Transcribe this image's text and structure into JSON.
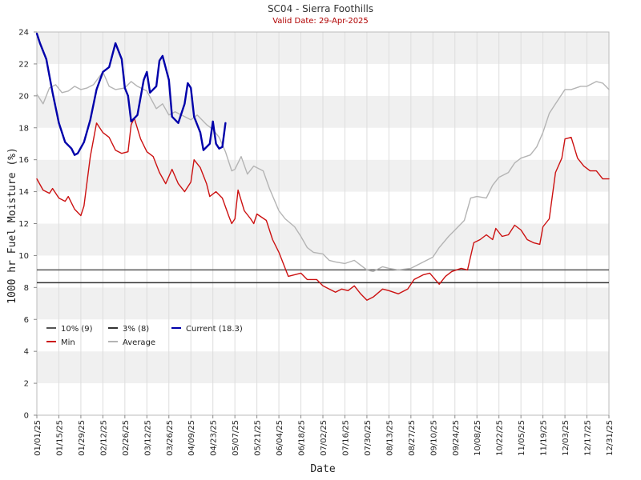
{
  "chart_data": {
    "type": "line",
    "title": "SC04 - Sierra Foothills",
    "subtitle": "Valid Date: 29-Apr-2025",
    "xlabel": "Date",
    "ylabel": "1000 hr Fuel Moisture (%)",
    "ylim": [
      0,
      24
    ],
    "xlim": [
      "01/01/25",
      "12/31/25"
    ],
    "yticks": [
      0,
      2,
      4,
      6,
      8,
      10,
      12,
      14,
      16,
      18,
      20,
      22,
      24
    ],
    "xticks": [
      "01/01/25",
      "01/15/25",
      "01/29/25",
      "02/12/25",
      "02/26/25",
      "03/12/25",
      "03/26/25",
      "04/09/25",
      "04/23/25",
      "05/07/25",
      "05/21/25",
      "06/04/25",
      "06/18/25",
      "07/02/25",
      "07/16/25",
      "07/30/25",
      "08/13/25",
      "08/27/25",
      "09/10/25",
      "09/24/25",
      "10/08/25",
      "10/22/25",
      "11/05/25",
      "11/19/25",
      "12/03/25",
      "12/17/25",
      "12/31/25"
    ],
    "grid": "horizontal bands",
    "legend_position": "lower-left",
    "thresholds": [
      {
        "name": "10% (9)",
        "value": 9.1,
        "color": "#555555"
      },
      {
        "name": "3% (8)",
        "value": 8.3,
        "color": "#333333"
      }
    ],
    "series": [
      {
        "name": "Average",
        "color": "#b4b4b4",
        "points": [
          [
            "01/01/25",
            20.1
          ],
          [
            "01/05/25",
            19.5
          ],
          [
            "01/09/25",
            20.5
          ],
          [
            "01/13/25",
            20.7
          ],
          [
            "01/17/25",
            20.2
          ],
          [
            "01/21/25",
            20.3
          ],
          [
            "01/25/25",
            20.6
          ],
          [
            "01/29/25",
            20.4
          ],
          [
            "02/02/25",
            20.5
          ],
          [
            "02/06/25",
            20.7
          ],
          [
            "02/12/25",
            21.5
          ],
          [
            "02/16/25",
            20.6
          ],
          [
            "02/20/25",
            20.4
          ],
          [
            "02/26/25",
            20.5
          ],
          [
            "03/02/25",
            20.9
          ],
          [
            "03/06/25",
            20.6
          ],
          [
            "03/12/25",
            20.3
          ],
          [
            "03/18/25",
            19.2
          ],
          [
            "03/22/25",
            19.5
          ],
          [
            "03/26/25",
            18.8
          ],
          [
            "03/30/25",
            19.0
          ],
          [
            "04/05/25",
            18.7
          ],
          [
            "04/09/25",
            18.5
          ],
          [
            "04/13/25",
            18.8
          ],
          [
            "04/19/25",
            18.2
          ],
          [
            "04/23/25",
            17.9
          ],
          [
            "04/27/25",
            17.4
          ],
          [
            "05/01/25",
            16.5
          ],
          [
            "05/05/25",
            15.3
          ],
          [
            "05/07/25",
            15.4
          ],
          [
            "05/11/25",
            16.2
          ],
          [
            "05/15/25",
            15.1
          ],
          [
            "05/19/25",
            15.6
          ],
          [
            "05/25/25",
            15.3
          ],
          [
            "05/29/25",
            14.2
          ],
          [
            "06/04/25",
            12.8
          ],
          [
            "06/08/25",
            12.3
          ],
          [
            "06/14/25",
            11.8
          ],
          [
            "06/18/25",
            11.2
          ],
          [
            "06/22/25",
            10.5
          ],
          [
            "06/26/25",
            10.2
          ],
          [
            "07/02/25",
            10.1
          ],
          [
            "07/06/25",
            9.7
          ],
          [
            "07/10/25",
            9.6
          ],
          [
            "07/16/25",
            9.5
          ],
          [
            "07/22/25",
            9.7
          ],
          [
            "07/30/25",
            9.1
          ],
          [
            "08/03/25",
            9.0
          ],
          [
            "08/09/25",
            9.3
          ],
          [
            "08/13/25",
            9.2
          ],
          [
            "08/19/25",
            9.1
          ],
          [
            "08/27/25",
            9.2
          ],
          [
            "09/02/25",
            9.5
          ],
          [
            "09/10/25",
            9.9
          ],
          [
            "09/14/25",
            10.5
          ],
          [
            "09/20/25",
            11.2
          ],
          [
            "09/24/25",
            11.6
          ],
          [
            "09/30/25",
            12.2
          ],
          [
            "10/04/25",
            13.6
          ],
          [
            "10/08/25",
            13.7
          ],
          [
            "10/14/25",
            13.6
          ],
          [
            "10/18/25",
            14.4
          ],
          [
            "10/22/25",
            14.9
          ],
          [
            "10/28/25",
            15.2
          ],
          [
            "11/01/25",
            15.8
          ],
          [
            "11/05/25",
            16.1
          ],
          [
            "11/11/25",
            16.3
          ],
          [
            "11/15/25",
            16.8
          ],
          [
            "11/19/25",
            17.7
          ],
          [
            "11/23/25",
            18.9
          ],
          [
            "11/27/25",
            19.5
          ],
          [
            "12/03/25",
            20.4
          ],
          [
            "12/07/25",
            20.4
          ],
          [
            "12/13/25",
            20.6
          ],
          [
            "12/17/25",
            20.6
          ],
          [
            "12/23/25",
            20.9
          ],
          [
            "12/27/25",
            20.8
          ],
          [
            "12/31/25",
            20.4
          ]
        ]
      },
      {
        "name": "Min",
        "color": "#cc1111",
        "points": [
          [
            "01/01/25",
            14.8
          ],
          [
            "01/05/25",
            14.1
          ],
          [
            "01/09/25",
            13.9
          ],
          [
            "01/11/25",
            14.2
          ],
          [
            "01/15/25",
            13.6
          ],
          [
            "01/19/25",
            13.4
          ],
          [
            "01/21/25",
            13.7
          ],
          [
            "01/25/25",
            12.9
          ],
          [
            "01/29/25",
            12.5
          ],
          [
            "01/31/25",
            13.1
          ],
          [
            "02/04/25",
            16.2
          ],
          [
            "02/08/25",
            18.3
          ],
          [
            "02/12/25",
            17.7
          ],
          [
            "02/16/25",
            17.4
          ],
          [
            "02/20/25",
            16.6
          ],
          [
            "02/24/25",
            16.4
          ],
          [
            "02/28/25",
            16.5
          ],
          [
            "03/02/25",
            18.2
          ],
          [
            "03/04/25",
            18.6
          ],
          [
            "03/08/25",
            17.3
          ],
          [
            "03/12/25",
            16.5
          ],
          [
            "03/16/25",
            16.2
          ],
          [
            "03/20/25",
            15.2
          ],
          [
            "03/24/25",
            14.5
          ],
          [
            "03/28/25",
            15.4
          ],
          [
            "04/01/25",
            14.5
          ],
          [
            "04/05/25",
            14.0
          ],
          [
            "04/09/25",
            14.6
          ],
          [
            "04/11/25",
            16.0
          ],
          [
            "04/15/25",
            15.5
          ],
          [
            "04/19/25",
            14.5
          ],
          [
            "04/21/25",
            13.7
          ],
          [
            "04/25/25",
            14.0
          ],
          [
            "04/29/25",
            13.6
          ],
          [
            "05/03/25",
            12.5
          ],
          [
            "05/05/25",
            12.0
          ],
          [
            "05/07/25",
            12.3
          ],
          [
            "05/09/25",
            14.1
          ],
          [
            "05/13/25",
            12.8
          ],
          [
            "05/17/25",
            12.3
          ],
          [
            "05/19/25",
            12.0
          ],
          [
            "05/21/25",
            12.6
          ],
          [
            "05/27/25",
            12.2
          ],
          [
            "05/31/25",
            11.0
          ],
          [
            "06/04/25",
            10.2
          ],
          [
            "06/08/25",
            9.2
          ],
          [
            "06/10/25",
            8.7
          ],
          [
            "06/14/25",
            8.8
          ],
          [
            "06/18/25",
            8.9
          ],
          [
            "06/22/25",
            8.5
          ],
          [
            "06/28/25",
            8.5
          ],
          [
            "07/02/25",
            8.1
          ],
          [
            "07/06/25",
            7.9
          ],
          [
            "07/10/25",
            7.7
          ],
          [
            "07/14/25",
            7.9
          ],
          [
            "07/18/25",
            7.8
          ],
          [
            "07/22/25",
            8.1
          ],
          [
            "07/26/25",
            7.6
          ],
          [
            "07/30/25",
            7.2
          ],
          [
            "08/03/25",
            7.4
          ],
          [
            "08/09/25",
            7.9
          ],
          [
            "08/13/25",
            7.8
          ],
          [
            "08/19/25",
            7.6
          ],
          [
            "08/25/25",
            7.9
          ],
          [
            "08/29/25",
            8.5
          ],
          [
            "09/04/25",
            8.8
          ],
          [
            "09/08/25",
            8.9
          ],
          [
            "09/14/25",
            8.2
          ],
          [
            "09/18/25",
            8.7
          ],
          [
            "09/22/25",
            9.0
          ],
          [
            "09/28/25",
            9.2
          ],
          [
            "10/02/25",
            9.1
          ],
          [
            "10/06/25",
            10.8
          ],
          [
            "10/10/25",
            11.0
          ],
          [
            "10/14/25",
            11.3
          ],
          [
            "10/18/25",
            11.0
          ],
          [
            "10/20/25",
            11.7
          ],
          [
            "10/24/25",
            11.2
          ],
          [
            "10/28/25",
            11.3
          ],
          [
            "11/01/25",
            11.9
          ],
          [
            "11/05/25",
            11.6
          ],
          [
            "11/09/25",
            11.0
          ],
          [
            "11/13/25",
            10.8
          ],
          [
            "11/17/25",
            10.7
          ],
          [
            "11/19/25",
            11.8
          ],
          [
            "11/23/25",
            12.3
          ],
          [
            "11/27/25",
            15.2
          ],
          [
            "12/01/25",
            16.1
          ],
          [
            "12/03/25",
            17.3
          ],
          [
            "12/07/25",
            17.4
          ],
          [
            "12/11/25",
            16.1
          ],
          [
            "12/15/25",
            15.6
          ],
          [
            "12/19/25",
            15.3
          ],
          [
            "12/23/25",
            15.3
          ],
          [
            "12/27/25",
            14.8
          ],
          [
            "12/31/25",
            14.8
          ]
        ]
      },
      {
        "name": "Current (18.3)",
        "color": "#0000aa",
        "points": [
          [
            "01/01/25",
            23.9
          ],
          [
            "01/03/25",
            23.3
          ],
          [
            "01/07/25",
            22.3
          ],
          [
            "01/11/25",
            20.2
          ],
          [
            "01/15/25",
            18.3
          ],
          [
            "01/19/25",
            17.1
          ],
          [
            "01/23/25",
            16.7
          ],
          [
            "01/25/25",
            16.3
          ],
          [
            "01/27/25",
            16.4
          ],
          [
            "01/31/25",
            17.1
          ],
          [
            "02/04/25",
            18.5
          ],
          [
            "02/08/25",
            20.4
          ],
          [
            "02/12/25",
            21.5
          ],
          [
            "02/16/25",
            21.8
          ],
          [
            "02/20/25",
            23.3
          ],
          [
            "02/24/25",
            22.3
          ],
          [
            "02/26/25",
            20.5
          ],
          [
            "02/28/25",
            20.0
          ],
          [
            "03/02/25",
            18.4
          ],
          [
            "03/06/25",
            18.8
          ],
          [
            "03/10/25",
            21.0
          ],
          [
            "03/12/25",
            21.5
          ],
          [
            "03/14/25",
            20.2
          ],
          [
            "03/18/25",
            20.6
          ],
          [
            "03/20/25",
            22.2
          ],
          [
            "03/22/25",
            22.5
          ],
          [
            "03/26/25",
            21.0
          ],
          [
            "03/28/25",
            18.7
          ],
          [
            "04/01/25",
            18.3
          ],
          [
            "04/05/25",
            19.5
          ],
          [
            "04/07/25",
            20.8
          ],
          [
            "04/09/25",
            20.5
          ],
          [
            "04/11/25",
            18.7
          ],
          [
            "04/15/25",
            17.7
          ],
          [
            "04/17/25",
            16.6
          ],
          [
            "04/21/25",
            17.0
          ],
          [
            "04/23/25",
            18.4
          ],
          [
            "04/25/25",
            17.0
          ],
          [
            "04/27/25",
            16.7
          ],
          [
            "04/29/25",
            16.8
          ],
          [
            "05/01/25",
            18.3
          ]
        ]
      }
    ],
    "legend": [
      {
        "label": "10% (9)",
        "color": "#555555"
      },
      {
        "label": "3% (8)",
        "color": "#333333"
      },
      {
        "label": "Current (18.3)",
        "color": "#0000aa"
      },
      {
        "label": "Min",
        "color": "#cc1111"
      },
      {
        "label": "Average",
        "color": "#b4b4b4"
      }
    ]
  }
}
